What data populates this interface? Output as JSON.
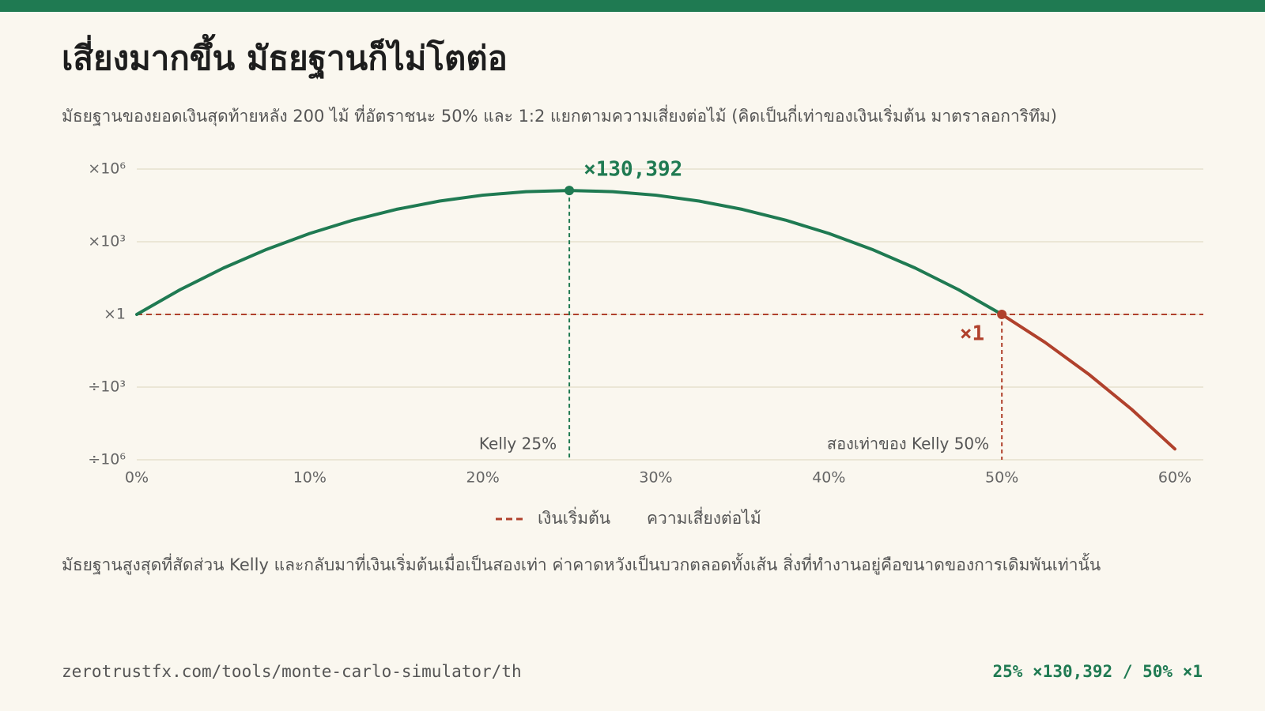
{
  "chart_data": {
    "type": "line",
    "title": "เสี่ยงมากขึ้น มัธยฐานก็ไม่โตต่อ",
    "subtitle": "มัธยฐานของยอดเงินสุดท้ายหลัง 200 ไม้ ที่อัตราชนะ 50% และ 1:2 แยกตามความเสี่ยงต่อไม้ (คิดเป็นกี่เท่าของเงินเริ่มต้น มาตราลอการิทึม)",
    "x_label": "ความเสี่ยงต่อไม้",
    "log_y": true,
    "grid": true,
    "xlim": [
      0,
      60
    ],
    "xticks": [
      {
        "value": 0,
        "label": "0%"
      },
      {
        "value": 10,
        "label": "10%"
      },
      {
        "value": 20,
        "label": "20%"
      },
      {
        "value": 30,
        "label": "30%"
      },
      {
        "value": 40,
        "label": "40%"
      },
      {
        "value": 50,
        "label": "50%"
      },
      {
        "value": 60,
        "label": "60%"
      }
    ],
    "ylim": [
      1e-06,
      1000000
    ],
    "yticks": [
      {
        "value": 1000000,
        "label": "×10⁶"
      },
      {
        "value": 1000,
        "label": "×10³"
      },
      {
        "value": 1,
        "label": "×1"
      },
      {
        "value": 0.001,
        "label": "÷10³"
      },
      {
        "value": 1e-06,
        "label": "÷10⁶"
      }
    ],
    "series": [
      {
        "color": "#1f7a52",
        "x": [
          0,
          2.5,
          5,
          7.5,
          10,
          12.5,
          15,
          17.5,
          20,
          22.5,
          25,
          27.5,
          30,
          32.5,
          35,
          37.5,
          40,
          42.5,
          45,
          47.5,
          50
        ],
        "values": [
          1,
          10.46,
          81.6,
          483,
          2200,
          7795,
          21690,
          47710,
          83530,
          116640,
          130392,
          116640,
          83530,
          47710,
          21690,
          7795,
          2200,
          483,
          81.6,
          10.46,
          1
        ]
      },
      {
        "color": "#b0412c",
        "x": [
          50,
          52.5,
          55,
          57.5,
          60
        ],
        "values": [
          1,
          0.0699,
          0.00349,
          0.000121,
          2.8e-06
        ]
      }
    ],
    "reference_line": {
      "name": "เงินเริ่มต้น",
      "value": 1,
      "color": "#b0412c"
    },
    "annotations": [
      {
        "x": 25,
        "y": 130392,
        "label": "×130,392",
        "line_label": "Kelly 25%",
        "color": "#1f7a52"
      },
      {
        "x": 50,
        "y": 1,
        "label": "×1",
        "line_label": "สองเท่าของ Kelly 50%",
        "color": "#b0412c"
      }
    ]
  },
  "footer": {
    "note": "มัธยฐานสูงสุดที่สัดส่วน Kelly และกลับมาที่เงินเริ่มต้นเมื่อเป็นสองเท่า ค่าคาดหวังเป็นบวกตลอดทั้งเส้น สิ่งที่ทำงานอยู่คือขนาดของการเดิมพันเท่านั้น",
    "url": "zerotrustfx.com/tools/monte-carlo-simulator/th",
    "summary": "25% ×130,392 / 50% ×1"
  }
}
